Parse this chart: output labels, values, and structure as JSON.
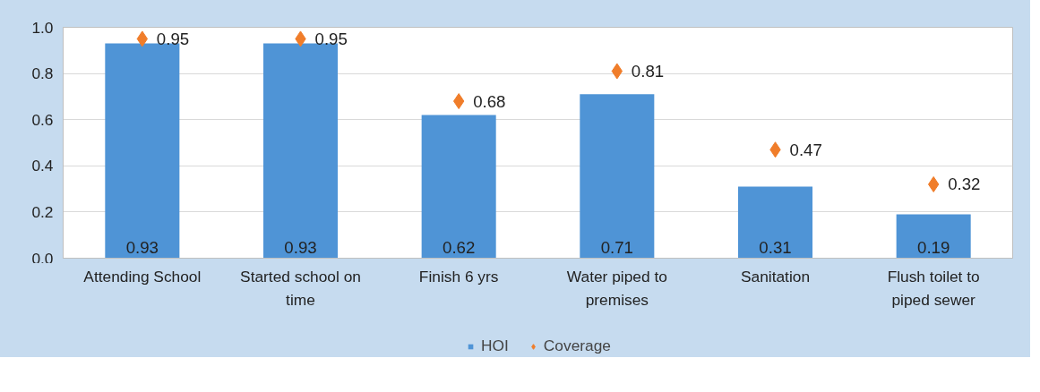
{
  "chart_data": {
    "type": "bar",
    "categories": [
      "Attending School",
      "Started school on time",
      "Finish 6 yrs",
      "Water piped to premises",
      "Sanitation",
      "Flush toilet to piped sewer"
    ],
    "series": [
      {
        "name": "HOI",
        "color": "#4f94d6",
        "values": [
          0.93,
          0.93,
          0.62,
          0.71,
          0.31,
          0.19
        ]
      },
      {
        "name": "Coverage",
        "type": "scatter",
        "marker": "diamond",
        "color": "#f07d2a",
        "values": [
          0.95,
          0.95,
          0.68,
          0.81,
          0.47,
          0.32
        ]
      }
    ],
    "ylim": [
      0,
      1
    ],
    "yticks": [
      {
        "value": 0,
        "label": "0.0"
      },
      {
        "value": 0.2,
        "label": "0.2"
      },
      {
        "value": 0.4,
        "label": "0.4"
      },
      {
        "value": 0.6,
        "label": "0.6"
      },
      {
        "value": 0.8,
        "label": "0.8"
      },
      {
        "value": 1,
        "label": "1.0"
      }
    ],
    "grid": "y",
    "legend": "bottom",
    "data_labels": true
  }
}
